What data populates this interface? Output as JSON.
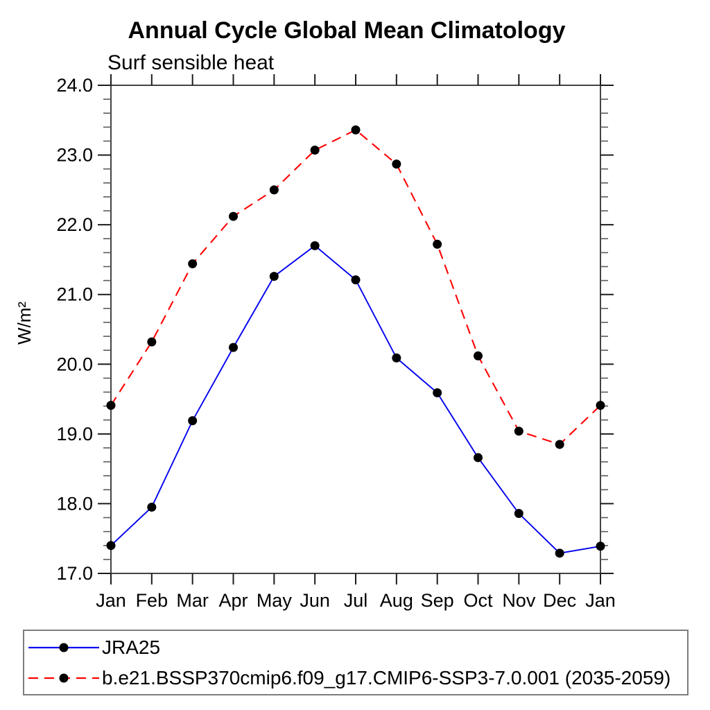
{
  "title": "Annual Cycle Global Mean Climatology",
  "subtitle": "Surf sensible heat",
  "chart_data": {
    "type": "line",
    "categories": [
      "Jan",
      "Feb",
      "Mar",
      "Apr",
      "May",
      "Jun",
      "Jul",
      "Aug",
      "Sep",
      "Oct",
      "Nov",
      "Dec",
      "Jan"
    ],
    "xlabel": "",
    "ylabel": "W/m²",
    "ylim": [
      17.0,
      24.0
    ],
    "ytick_major_step": 1.0,
    "ytick_minor_step": 0.2,
    "ytick_labels": [
      "17.0",
      "18.0",
      "19.0",
      "20.0",
      "21.0",
      "22.0",
      "23.0",
      "24.0"
    ],
    "grid": false,
    "legend_position": "bottom-left-box",
    "series": [
      {
        "name": "JRA25",
        "color": "#0000ee",
        "style": "solid",
        "marker": "filled-circle",
        "marker_color": "#000000",
        "values": [
          17.4,
          17.95,
          19.19,
          20.24,
          21.26,
          21.7,
          21.21,
          20.09,
          19.59,
          18.66,
          17.86,
          17.29,
          17.39
        ]
      },
      {
        "name": "b.e21.BSSP370cmip6.f09_g17.CMIP6-SSP3-7.0.001 (2035-2059)",
        "color": "#ff0000",
        "style": "dashed",
        "marker": "filled-circle",
        "marker_color": "#000000",
        "values": [
          19.41,
          20.32,
          21.44,
          22.12,
          22.5,
          23.07,
          23.36,
          22.87,
          21.72,
          20.12,
          19.04,
          18.85,
          19.41
        ]
      }
    ]
  },
  "colors": {
    "frame": "#434343",
    "tick": "#1c1c1c",
    "minor_tick": "#5a5a5a",
    "marker": "#000000",
    "legend_border": "#7d7d7d"
  }
}
